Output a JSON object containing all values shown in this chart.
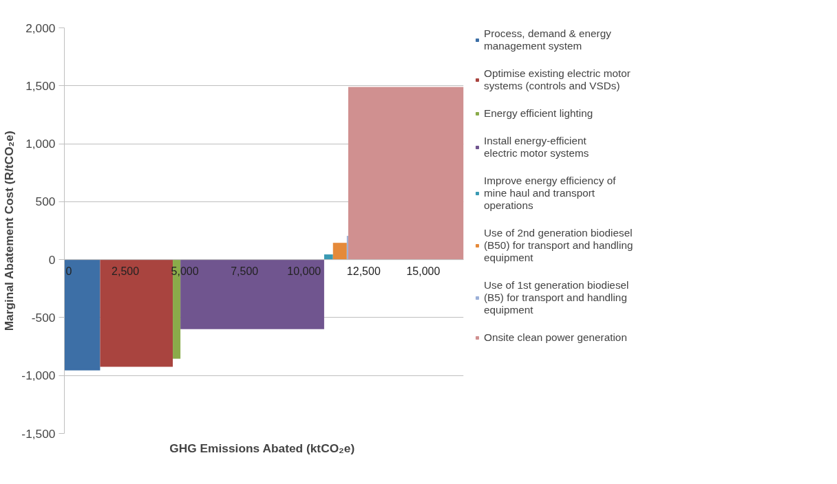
{
  "chart_data": {
    "type": "area",
    "xlabel": "GHG  Emissions Abated (ktCO₂e)",
    "ylabel": "Marginal Abatement Cost (R/tCO₂e)",
    "xlim": [
      0,
      16750
    ],
    "xticks": [
      {
        "value": 0,
        "label": "0"
      },
      {
        "value": 2500,
        "label": "2,500"
      },
      {
        "value": 5000,
        "label": "5,000"
      },
      {
        "value": 7500,
        "label": "7,500"
      },
      {
        "value": 10000,
        "label": "10,000"
      },
      {
        "value": 12500,
        "label": "12,500"
      },
      {
        "value": 15000,
        "label": "15,000"
      }
    ],
    "ylim": [
      -1500,
      2000
    ],
    "yticks": [
      {
        "value": -1500,
        "label": "-1,500"
      },
      {
        "value": -1000,
        "label": "-1,000"
      },
      {
        "value": -500,
        "label": "-500"
      },
      0,
      500,
      {
        "value": 1000,
        "label": "1,000"
      },
      {
        "value": 1500,
        "label": "1,500"
      },
      {
        "value": 2000,
        "label": "2,000"
      }
    ],
    "grid": "y",
    "legend": "right",
    "series": [
      {
        "name": "Process, demand & energy management system",
        "color": "#3d6fa6",
        "x": [
          0,
          1500
        ],
        "values": [
          -955,
          -955
        ]
      },
      {
        "name": "Optimise existing electric motor systems (controls and VSDs)",
        "color": "#a9443f",
        "x": [
          1500,
          4550
        ],
        "values": [
          -925,
          -925
        ]
      },
      {
        "name": "Energy efficient lighting",
        "color": "#8aab4a",
        "x": [
          4550,
          4870
        ],
        "values": [
          -855,
          -855
        ]
      },
      {
        "name": "Install energy-efficient electric motor systems",
        "color": "#70558f",
        "x": [
          4870,
          10900
        ],
        "values": [
          -600,
          -600
        ]
      },
      {
        "name": "Improve energy efficiency of mine haul and transport operations",
        "color": "#3a9ab3",
        "x": [
          10900,
          11270
        ],
        "values": [
          45,
          45
        ]
      },
      {
        "name": "Use of 2nd generation biodiesel (B50) for transport and handling equipment",
        "color": "#e58a3a",
        "x": [
          11270,
          11850
        ],
        "values": [
          145,
          145
        ]
      },
      {
        "name": "Use of 1st generation biodiesel (B5) for transport and handling equipment",
        "color": "#9bb0d8",
        "x": [
          11850,
          11910
        ],
        "values": [
          205,
          205
        ]
      },
      {
        "name": "Onsite clean power generation",
        "color": "#d09090",
        "x": [
          11910,
          16750
        ],
        "values": [
          1490,
          1490
        ]
      }
    ]
  }
}
